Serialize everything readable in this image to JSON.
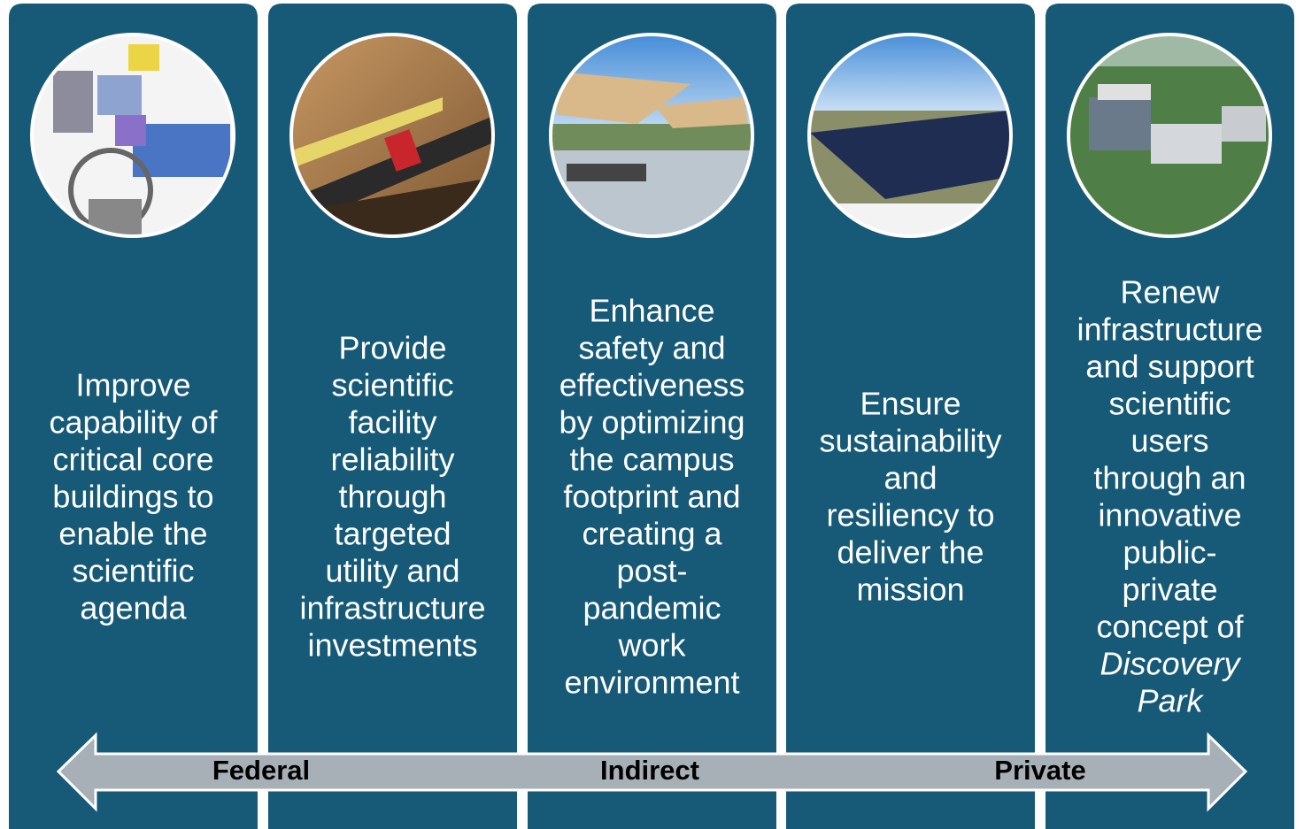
{
  "columns": [
    {
      "lines": [
        "Improve",
        "capability of",
        "critical core",
        "buildings to",
        "enable the",
        "scientific",
        "agenda"
      ]
    },
    {
      "lines": [
        "Provide",
        "scientific",
        "facility",
        "reliability",
        "through",
        "targeted",
        "utility and",
        "infrastructure",
        "investments"
      ]
    },
    {
      "lines": [
        "Enhance",
        "safety and",
        "effectiveness",
        "by optimizing",
        "the campus",
        "footprint and",
        "creating a",
        "post-",
        "pandemic",
        "work",
        "environment"
      ]
    },
    {
      "lines": [
        "Ensure",
        "sustainability",
        "and",
        "resiliency to",
        "deliver the",
        "mission"
      ]
    },
    {
      "lines": [
        "Renew",
        "infrastructure",
        "and support",
        "scientific",
        "users",
        "through an",
        "innovative",
        "public-",
        "private",
        "concept of"
      ],
      "emphasis": [
        "Discovery",
        "Park"
      ]
    }
  ],
  "arrow": {
    "labels": [
      "Federal",
      "Indirect",
      "Private"
    ]
  }
}
